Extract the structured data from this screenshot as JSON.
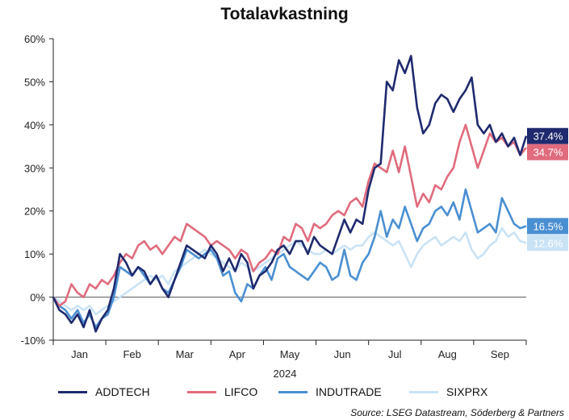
{
  "chart_data": {
    "type": "line",
    "title": "Totalavkastning",
    "xlabel": "2024",
    "ylabel": "",
    "ylim": [
      -10,
      60
    ],
    "yticks": [
      "60%",
      "50%",
      "40%",
      "30%",
      "20%",
      "10%",
      "0%",
      "-10%"
    ],
    "ytick_values": [
      60,
      50,
      40,
      30,
      20,
      10,
      0,
      -10
    ],
    "months": [
      "Jan",
      "Feb",
      "Mar",
      "Apr",
      "May",
      "Jun",
      "Jul",
      "Aug",
      "Sep"
    ],
    "x_unit": "week of 2024 (approx.)",
    "source": "Source: LSEG Datastream, Söderberg & Partners",
    "grid": false,
    "legend_position": "bottom",
    "series": [
      {
        "name": "ADDTECH",
        "color": "#1f2a6e",
        "end_label": "37.4%",
        "x": [
          0,
          0.5,
          1,
          1.5,
          2,
          2.5,
          3,
          3.5,
          4,
          4.5,
          5,
          5.5,
          6,
          6.5,
          7,
          7.5,
          8,
          8.5,
          9,
          9.5,
          10,
          10.5,
          11,
          11.5,
          12,
          12.5,
          13,
          13.5,
          14,
          14.5,
          15,
          15.5,
          16,
          16.5,
          17,
          17.5,
          18,
          18.5,
          19,
          19.5,
          20,
          20.5,
          21,
          21.5,
          22,
          22.5,
          23,
          23.5,
          24,
          24.5,
          25,
          25.5,
          26,
          26.5,
          27,
          27.5,
          28,
          28.5,
          29,
          29.5,
          30,
          30.5,
          31,
          31.5,
          32,
          32.5,
          33,
          33.5,
          34,
          34.5,
          35,
          35.5,
          36,
          36.5,
          37,
          37.5,
          38,
          38.5,
          39
        ],
        "y": [
          0,
          -3,
          -4,
          -6,
          -4,
          -7,
          -3,
          -8,
          -5,
          -3,
          2,
          10,
          8,
          5,
          7,
          6,
          3,
          5,
          2,
          0,
          4,
          8,
          12,
          11,
          10,
          9,
          12,
          10,
          6,
          9,
          6,
          10,
          8,
          2,
          5,
          6,
          8,
          11,
          12,
          10,
          13,
          13,
          10,
          14,
          12,
          11,
          10,
          14,
          18,
          15,
          18,
          17,
          25,
          30,
          31,
          50,
          48,
          55,
          52,
          56,
          44,
          38,
          40,
          45,
          47,
          46,
          43,
          46,
          48,
          51,
          40,
          38,
          40,
          36,
          38,
          35,
          37,
          33,
          37.4
        ]
      },
      {
        "name": "LIFCO",
        "color": "#e06b7d",
        "end_label": "34.7%",
        "x": [
          0,
          0.5,
          1,
          1.5,
          2,
          2.5,
          3,
          3.5,
          4,
          4.5,
          5,
          5.5,
          6,
          6.5,
          7,
          7.5,
          8,
          8.5,
          9,
          9.5,
          10,
          10.5,
          11,
          11.5,
          12,
          12.5,
          13,
          13.5,
          14,
          14.5,
          15,
          15.5,
          16,
          16.5,
          17,
          17.5,
          18,
          18.5,
          19,
          19.5,
          20,
          20.5,
          21,
          21.5,
          22,
          22.5,
          23,
          23.5,
          24,
          24.5,
          25,
          25.5,
          26,
          26.5,
          27,
          27.5,
          28,
          28.5,
          29,
          29.5,
          30,
          30.5,
          31,
          31.5,
          32,
          32.5,
          33,
          33.5,
          34,
          34.5,
          35,
          35.5,
          36,
          36.5,
          37,
          37.5,
          38,
          38.5,
          39
        ],
        "y": [
          0,
          -2,
          -1,
          3,
          1,
          0,
          3,
          2,
          4,
          3,
          5,
          8,
          10,
          9,
          12,
          13,
          11,
          12,
          10,
          12,
          14,
          13,
          17,
          16,
          15,
          14,
          12,
          13,
          12,
          11,
          9,
          11,
          10,
          6,
          8,
          9,
          11,
          10,
          14,
          13,
          17,
          16,
          13,
          17,
          16,
          17,
          19,
          20,
          19,
          22,
          23,
          21,
          27,
          31,
          30,
          29,
          34,
          29,
          35,
          28,
          21,
          24,
          22,
          26,
          25,
          28,
          30,
          36,
          40,
          35,
          30,
          34,
          38,
          36,
          37,
          35,
          36,
          33,
          34.7
        ]
      },
      {
        "name": "INDUTRADE",
        "color": "#4a8fd1",
        "end_label": "16.5%",
        "x": [
          0,
          0.5,
          1,
          1.5,
          2,
          2.5,
          3,
          3.5,
          4,
          4.5,
          5,
          5.5,
          6,
          6.5,
          7,
          7.5,
          8,
          8.5,
          9,
          9.5,
          10,
          10.5,
          11,
          11.5,
          12,
          12.5,
          13,
          13.5,
          14,
          14.5,
          15,
          15.5,
          16,
          16.5,
          17,
          17.5,
          18,
          18.5,
          19,
          19.5,
          20,
          20.5,
          21,
          21.5,
          22,
          22.5,
          23,
          23.5,
          24,
          24.5,
          25,
          25.5,
          26,
          26.5,
          27,
          27.5,
          28,
          28.5,
          29,
          29.5,
          30,
          30.5,
          31,
          31.5,
          32,
          32.5,
          33,
          33.5,
          34,
          34.5,
          35,
          35.5,
          36,
          36.5,
          37,
          37.5,
          38,
          38.5,
          39
        ],
        "y": [
          0,
          -2,
          -3,
          -5,
          -3,
          -6,
          -4,
          -7,
          -5,
          -4,
          0,
          7,
          6,
          5,
          7,
          5,
          3,
          5,
          2,
          1,
          4,
          7,
          11,
          10,
          9,
          10,
          11,
          9,
          5,
          6,
          1,
          -1,
          3,
          2,
          5,
          7,
          4,
          9,
          10,
          7,
          6,
          5,
          4,
          6,
          8,
          7,
          4,
          5,
          11,
          5,
          4,
          8,
          10,
          14,
          20,
          14,
          18,
          16,
          21,
          17,
          13,
          16,
          17,
          20,
          21,
          19,
          22,
          18,
          25,
          20,
          15,
          16,
          17,
          15,
          23,
          20,
          17,
          16,
          16.5
        ]
      },
      {
        "name": "SIXPRX",
        "color": "#c9e3f5",
        "end_label": "12.6%",
        "x": [
          0,
          0.5,
          1,
          1.5,
          2,
          2.5,
          3,
          3.5,
          4,
          4.5,
          5,
          5.5,
          6,
          6.5,
          7,
          7.5,
          8,
          8.5,
          9,
          9.5,
          10,
          10.5,
          11,
          11.5,
          12,
          12.5,
          13,
          13.5,
          14,
          14.5,
          15,
          15.5,
          16,
          16.5,
          17,
          17.5,
          18,
          18.5,
          19,
          19.5,
          20,
          20.5,
          21,
          21.5,
          22,
          22.5,
          23,
          23.5,
          24,
          24.5,
          25,
          25.5,
          26,
          26.5,
          27,
          27.5,
          28,
          28.5,
          29,
          29.5,
          30,
          30.5,
          31,
          31.5,
          32,
          32.5,
          33,
          33.5,
          34,
          34.5,
          35,
          35.5,
          36,
          36.5,
          37,
          37.5,
          38,
          38.5,
          39
        ],
        "y": [
          0,
          -1,
          -2,
          -3,
          -2,
          -3,
          -2,
          -4,
          -3,
          -2,
          -1,
          0,
          1,
          2,
          3,
          4,
          5,
          4,
          5,
          3,
          6,
          7,
          8,
          9,
          10,
          11,
          10,
          9,
          8,
          7,
          6,
          8,
          7,
          6,
          7,
          8,
          9,
          10,
          11,
          12,
          13,
          12,
          11,
          10,
          10,
          11,
          10,
          11,
          12,
          11,
          12,
          12,
          14,
          15,
          14,
          13,
          12,
          13,
          10,
          7,
          10,
          12,
          13,
          14,
          12,
          13,
          14,
          13,
          15,
          11,
          9,
          10,
          12,
          13,
          16,
          14,
          15,
          13,
          12.6
        ]
      }
    ]
  }
}
